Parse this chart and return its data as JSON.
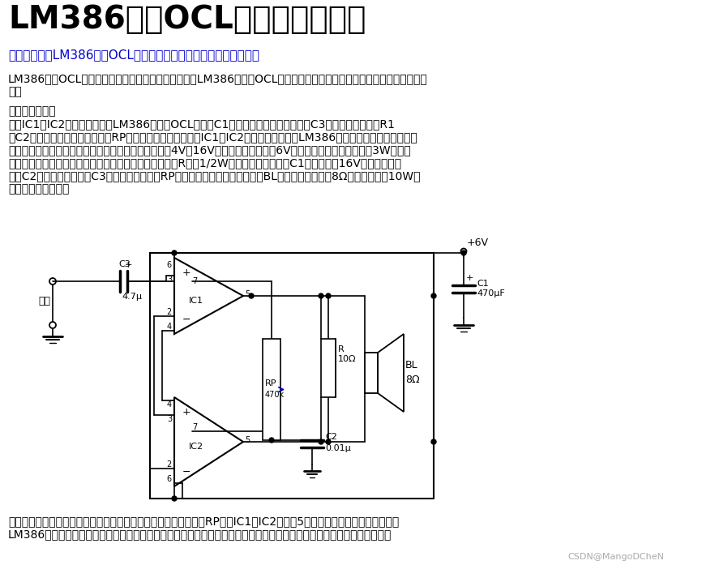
{
  "title": "LM386简易OCL功放电路原理图",
  "title_color": "#000000",
  "bg_color": "#ffffff",
  "intro_line": "本文主要讲了LM386简易OCL功放电路原理图，下面一起来学习一下",
  "intro_color": "#0000cc",
  "para1": "LM386简易OCL功放电路是使用低功耗集成功率放大器LM386构成的OCL放大电路，电路结构简单，容易调试，非常适于自制。",
  "para1_color": "#000000",
  "para2_label": "电路工作原理：",
  "para2_body": "图中IC1和IC2是两片集成功放LM386，接成OCL电路。C1起到电源滤波及退耦作用，C3为输入耦合电容，R1和C2起到防止电路自激的功能，RP为静态平衡调节电位器。IC1和IC2选用集成功放电路LM386，具有功耗低、电压适应范围宽、频响范围宽和外围元件少等特点。其工作电压为4V～16V，如图中工作电压为6V时，额定输出功率可以达到3W，适宜用来推动小音箱或作为设备的语音提示及报警功放。电阻R选用1/2W金属膜电阻器。电容C1选用耐压为16V的铝电解电容器；C2选用聚丙烯电容，C3选用钽电解电容。RP选用有机实芯电位器。扬声器BL根据实际需要选用8Ω，额定功率在10W以下的扬声器或音箱。",
  "para2_color": "#000000",
  "footer": "制作和调试方法：电路安装完成后，将音频信号输入端接地，调整RP，使IC1和IC2的两只5脚输出直流电压相等即可。由于LM386外接元件少，一般情况下都可正常工作。电路可安装在自制的印刷电路板上，也可在万能印制电路板上来进行焊接。",
  "footer_color": "#000000",
  "watermark": "CSDN@MangoDCheN",
  "watermark_color": "#aaaaaa"
}
